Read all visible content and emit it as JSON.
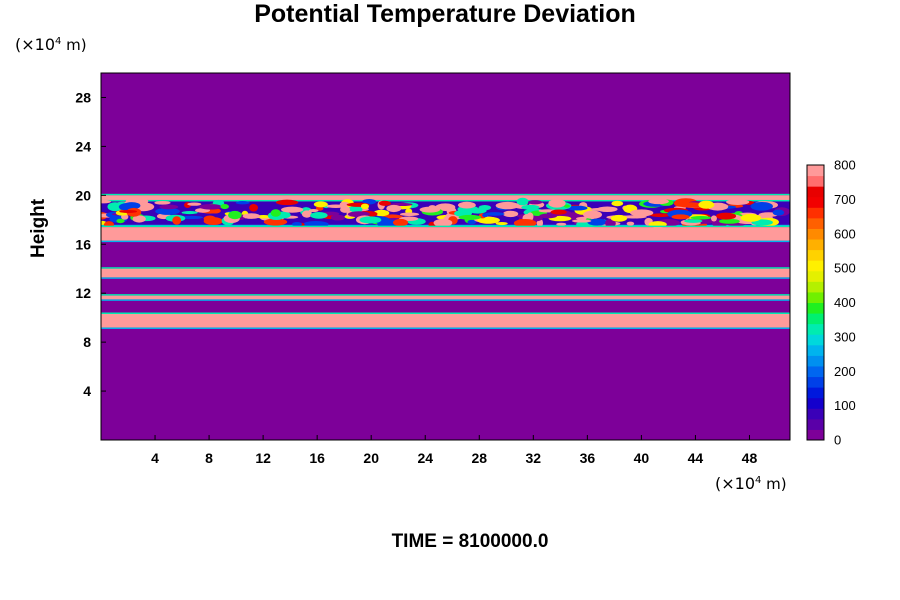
{
  "chart_data": {
    "type": "heatmap",
    "title": "Potential Temperature Deviation",
    "ylabel": "Height",
    "x_unit": {
      "pre": "(×10",
      "exp": "4",
      "post": " m)"
    },
    "y_unit": {
      "pre": "(×10",
      "exp": "4",
      "post": " m)"
    },
    "xlim": [
      0,
      51
    ],
    "ylim": [
      0,
      30
    ],
    "xticks": [
      4,
      8,
      12,
      16,
      20,
      24,
      28,
      32,
      36,
      40,
      44,
      48
    ],
    "yticks": [
      4,
      8,
      12,
      16,
      20,
      24,
      28
    ],
    "background_value": 0,
    "bands": [
      {
        "y0": 19.5,
        "y1": 20.0,
        "value": 800
      },
      {
        "y0": 17.6,
        "y1": 19.5,
        "value": 650,
        "turbulent": true
      },
      {
        "y0": 16.3,
        "y1": 17.4,
        "value": 800
      },
      {
        "y0": 13.3,
        "y1": 14.0,
        "value": 800
      },
      {
        "y0": 11.5,
        "y1": 11.8,
        "value": 800
      },
      {
        "y0": 9.2,
        "y1": 10.3,
        "value": 800
      }
    ],
    "colorbar": {
      "min": 0,
      "max": 800,
      "ticks": [
        0,
        100,
        200,
        300,
        400,
        500,
        600,
        700,
        800
      ],
      "colors": [
        "#7d0099",
        "#5a00a8",
        "#3a00b8",
        "#1400cc",
        "#0018dd",
        "#0040e8",
        "#0066f0",
        "#0090f0",
        "#00b4ee",
        "#00d8dc",
        "#00ecb0",
        "#00f070",
        "#20f020",
        "#70f000",
        "#b4f000",
        "#e4f000",
        "#fff000",
        "#ffd200",
        "#ffb000",
        "#ff8a00",
        "#ff6000",
        "#ff3000",
        "#f20000",
        "#e80000",
        "#ff6e6e",
        "#ff9a9a"
      ]
    },
    "time_label": "TIME = 8100000.0"
  },
  "colors": {
    "background": "#7d0099",
    "band": "#ff9a9a"
  }
}
